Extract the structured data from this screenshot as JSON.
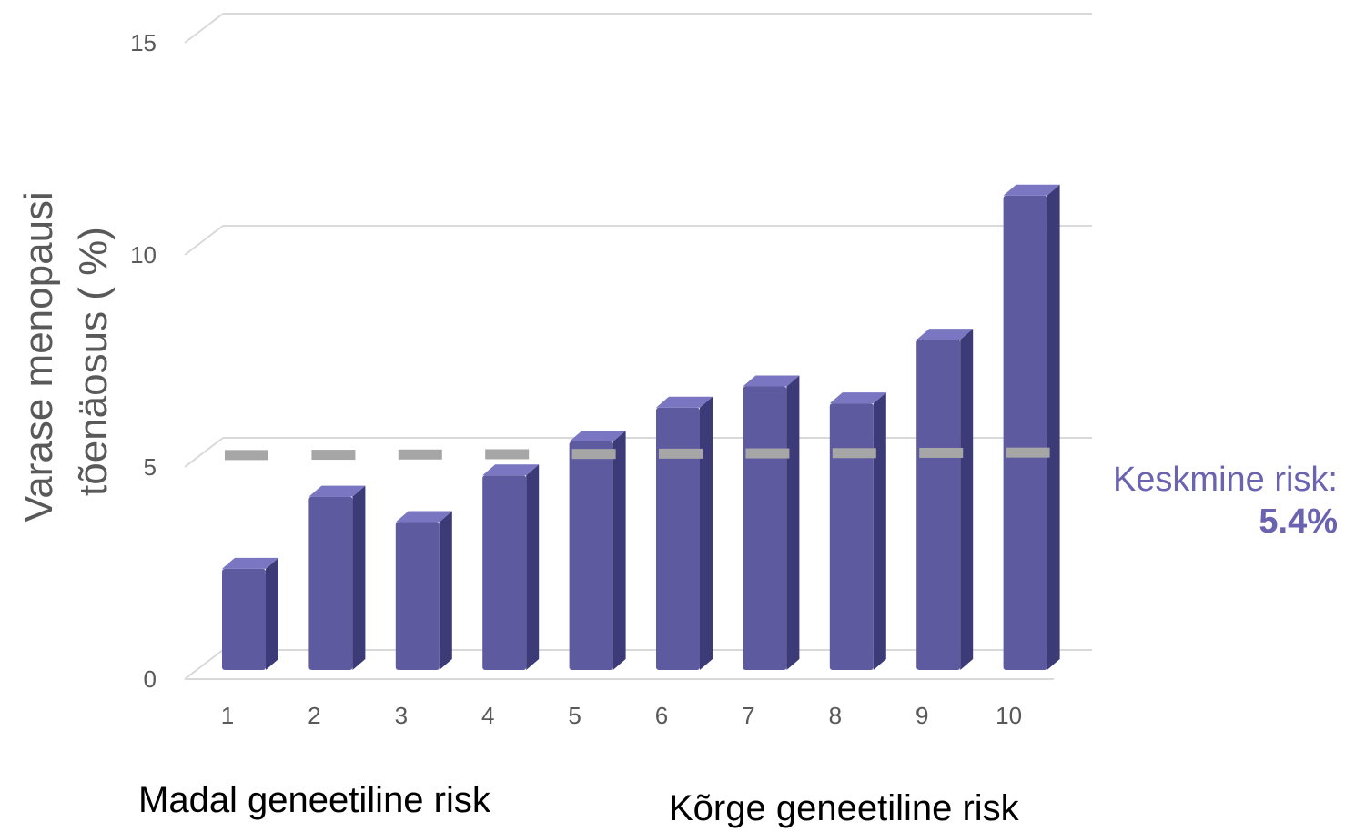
{
  "chart_data": {
    "type": "bar",
    "categories": [
      "1",
      "2",
      "3",
      "4",
      "5",
      "6",
      "7",
      "8",
      "9",
      "10"
    ],
    "values": [
      2.3,
      4.0,
      3.4,
      4.5,
      5.3,
      6.1,
      6.6,
      6.2,
      7.7,
      11.1
    ],
    "ylabel": "Varase menopausi tõenäosus ( %)",
    "ylabel_lines": [
      "Varase menopausi",
      "tõenäosus ( %)"
    ],
    "ylim": [
      0,
      15
    ],
    "yticks": [
      "0",
      "5",
      "10",
      "15"
    ],
    "average": {
      "value": 5.4,
      "label": "Keskmine risk:",
      "value_text": "5.4%"
    },
    "low_label": "Madal geneetiline risk",
    "high_label": "Kõrge geneetiline risk",
    "grid": true,
    "style": "3d-column"
  },
  "colors": {
    "bar_front": "#5e5aa0",
    "bar_side": "#3d3a78",
    "bar_top": "#7a76c2",
    "average_line": "#a6a6a6",
    "average_text": "#6a63b0",
    "grid": "#d9d9d9",
    "tick_text": "#595959"
  }
}
